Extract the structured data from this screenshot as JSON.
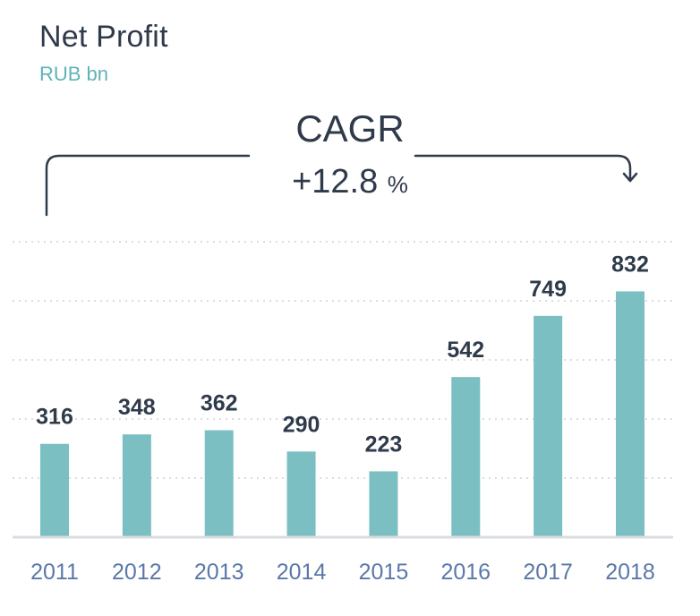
{
  "title": "Net Profit",
  "subtitle": "RUB bn",
  "cagr": {
    "label": "CAGR",
    "value": "+12.8",
    "unit": "%"
  },
  "colors": {
    "bar": "#7bbfc3",
    "text_dark": "#2f3a4a",
    "axis_label": "#5a78a8",
    "grid": "#d9dde3",
    "baseline": "#d8dde2",
    "accent": "#5fb3b8"
  },
  "chart_data": {
    "type": "bar",
    "categories": [
      "2011",
      "2012",
      "2013",
      "2014",
      "2015",
      "2016",
      "2017",
      "2018"
    ],
    "values": [
      316,
      348,
      362,
      290,
      223,
      542,
      749,
      832
    ],
    "data_labels": [
      "316",
      "348",
      "362",
      "290",
      "223",
      "542",
      "749",
      "832"
    ],
    "title": "Net Profit",
    "ylabel": "RUB bn",
    "ylim": [
      0,
      1000
    ],
    "grid": true
  }
}
